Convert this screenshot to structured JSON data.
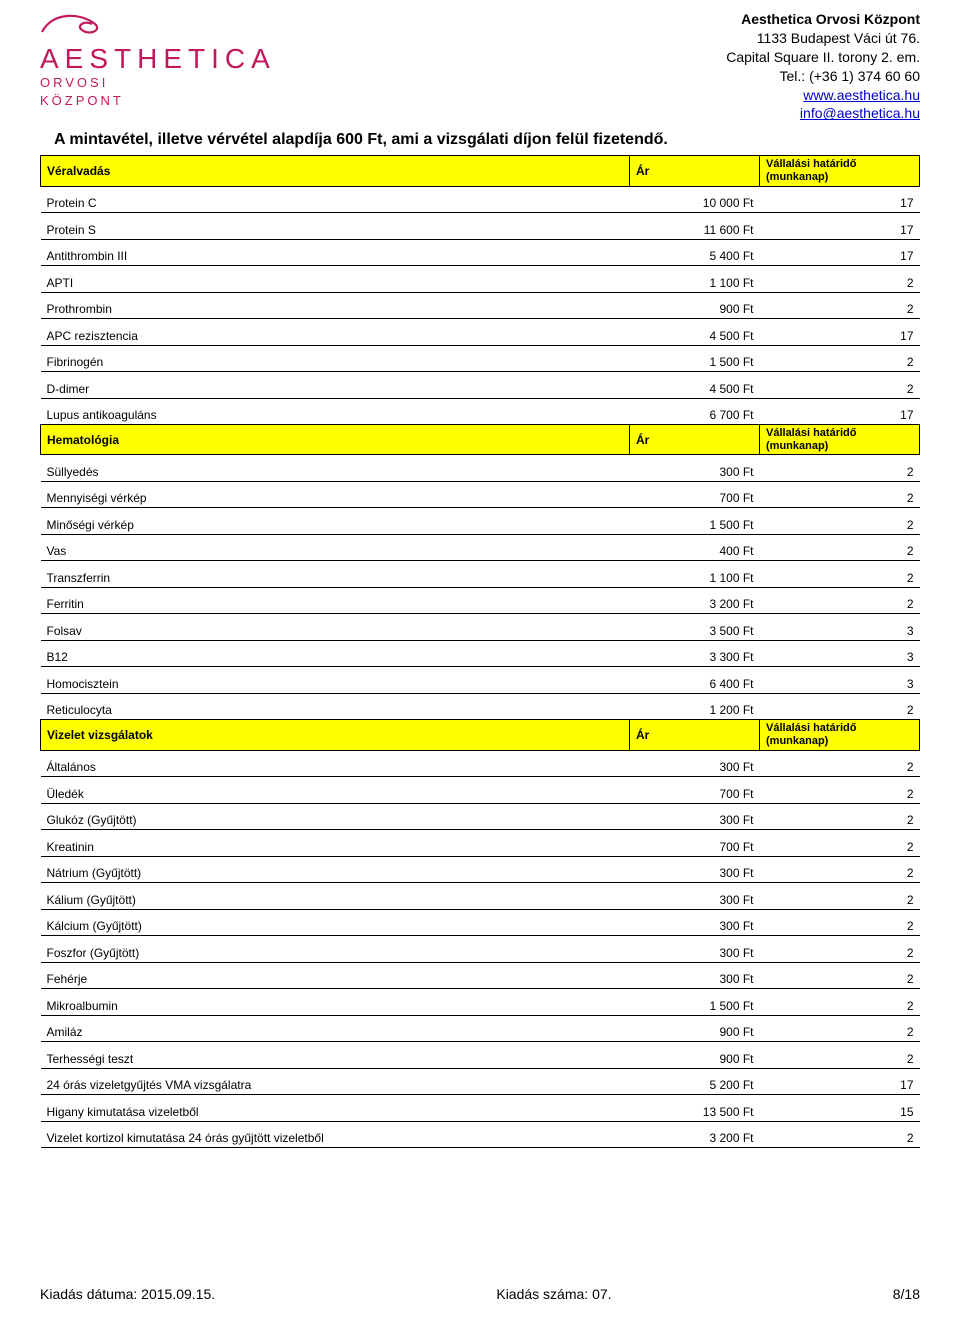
{
  "header": {
    "company": "Aesthetica Orvosi Központ",
    "address1": "1133 Budapest Váci út 76.",
    "address2": "Capital Square II. torony 2. em.",
    "tel": "Tel.: (+36 1) 374 60 60",
    "url": "www.aesthetica.hu",
    "email": "info@aesthetica.hu",
    "logo_main": "AESTHETICA",
    "logo_sub1": "ORVOSI",
    "logo_sub2": "KÖZPONT",
    "brand_color": "#c2185b"
  },
  "intro": "A mintavétel, illetve vérvétel alapdíja 600 Ft, ami a vizsgálati díjon felül fizetendő.",
  "section_cols": {
    "price": "Ár",
    "deadline": "Vállalási határidő (munkanap)"
  },
  "sections": [
    {
      "title": "Véralvadás",
      "rows": [
        {
          "name": "Protein C",
          "price": "10 000 Ft",
          "days": "17"
        },
        {
          "name": "Protein S",
          "price": "11 600 Ft",
          "days": "17"
        },
        {
          "name": "Antithrombin III",
          "price": "5 400 Ft",
          "days": "17"
        },
        {
          "name": "APTI",
          "price": "1 100 Ft",
          "days": "2"
        },
        {
          "name": "Prothrombin",
          "price": "900 Ft",
          "days": "2"
        },
        {
          "name": "APC rezisztencia",
          "price": "4 500 Ft",
          "days": "17"
        },
        {
          "name": "Fibrinogén",
          "price": "1 500 Ft",
          "days": "2"
        },
        {
          "name": "D-dimer",
          "price": "4 500 Ft",
          "days": "2"
        },
        {
          "name": "Lupus antikoaguláns",
          "price": "6 700 Ft",
          "days": "17"
        }
      ]
    },
    {
      "title": "Hematológia",
      "rows": [
        {
          "name": "Süllyedés",
          "price": "300 Ft",
          "days": "2"
        },
        {
          "name": "Mennyiségi vérkép",
          "price": "700 Ft",
          "days": "2"
        },
        {
          "name": "Minőségi vérkép",
          "price": "1 500 Ft",
          "days": "2"
        },
        {
          "name": "Vas",
          "price": "400 Ft",
          "days": "2"
        },
        {
          "name": "Transzferrin",
          "price": "1 100 Ft",
          "days": "2"
        },
        {
          "name": "Ferritin",
          "price": "3 200 Ft",
          "days": "2"
        },
        {
          "name": "Folsav",
          "price": "3 500 Ft",
          "days": "3"
        },
        {
          "name": "B12",
          "price": "3 300 Ft",
          "days": "3"
        },
        {
          "name": "Homocisztein",
          "price": "6 400 Ft",
          "days": "3"
        },
        {
          "name": "Reticulocyta",
          "price": "1 200 Ft",
          "days": "2"
        }
      ]
    },
    {
      "title": "Vizelet vizsgálatok",
      "rows": [
        {
          "name": "Általános",
          "price": "300 Ft",
          "days": "2"
        },
        {
          "name": "Üledék",
          "price": "700 Ft",
          "days": "2"
        },
        {
          "name": "Glukóz (Gyűjtött)",
          "price": "300 Ft",
          "days": "2"
        },
        {
          "name": "Kreatinin",
          "price": "700 Ft",
          "days": "2"
        },
        {
          "name": "Nátrium (Gyűjtött)",
          "price": "300 Ft",
          "days": "2"
        },
        {
          "name": "Kálium (Gyűjtött)",
          "price": "300 Ft",
          "days": "2"
        },
        {
          "name": "Kálcium (Gyűjtött)",
          "price": "300 Ft",
          "days": "2"
        },
        {
          "name": "Foszfor (Gyűjtött)",
          "price": "300 Ft",
          "days": "2"
        },
        {
          "name": "Fehérje",
          "price": "300 Ft",
          "days": "2"
        },
        {
          "name": "Mikroalbumin",
          "price": "1 500 Ft",
          "days": "2"
        },
        {
          "name": "Amiláz",
          "price": "900 Ft",
          "days": "2"
        },
        {
          "name": "Terhességi teszt",
          "price": "900 Ft",
          "days": "2"
        },
        {
          "name": "24 órás vizeletgyűjtés VMA vizsgálatra",
          "price": "5 200 Ft",
          "days": "17"
        },
        {
          "name": "Higany kimutatása vizeletből",
          "price": "13 500 Ft",
          "days": "15"
        },
        {
          "name": "Vizelet kortizol kimutatása 24 órás gyűjtött vizeletből",
          "price": "3 200 Ft",
          "days": "2"
        }
      ]
    }
  ],
  "footer": {
    "left": "Kiadás dátuma: 2015.09.15.",
    "mid": "Kiadás száma: 07.",
    "right": "8/18"
  },
  "colors": {
    "section_bg": "#ffff00",
    "border": "#000000",
    "link": "#0000cc"
  }
}
